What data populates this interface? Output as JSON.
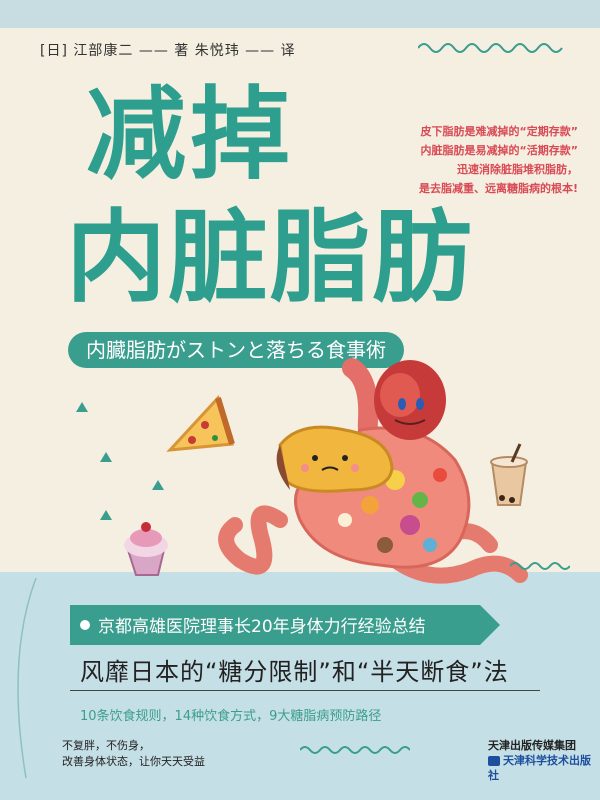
{
  "book": {
    "authors_line": "[日] 江部康二 —— 著  朱悦玮 —— 译",
    "title_line1": "减掉",
    "title_line2": "内脏脂肪",
    "japanese_title": "内臓脂肪がストンと落ちる食事術",
    "blurb": [
      "皮下脂肪是难减掉的“定期存款”",
      "内脏脂肪是易减掉的“活期存款”",
      "迅速消除脏脂堆积脂肪，",
      "是去脂减重、远离糖脂病的根本!"
    ],
    "banner": "京都高雄医院理事长20年身体力行经验总结",
    "subtitle": "风靡日本的“糖分限制”和“半天断食”法",
    "features": "10条饮食规则，14种饮食方式，9大糖脂病预防路径",
    "tagline": [
      "不复胖，不伤身，",
      "改善身体状态，让你天天受益"
    ],
    "publisher": {
      "group": "天津出版传媒集团",
      "press": "天津科学技术出版社"
    }
  },
  "colors": {
    "teal": "#2e9e8e",
    "red_text": "#d94a55",
    "paper": "#f4efe0",
    "light_blue": "#c5dfe6"
  }
}
